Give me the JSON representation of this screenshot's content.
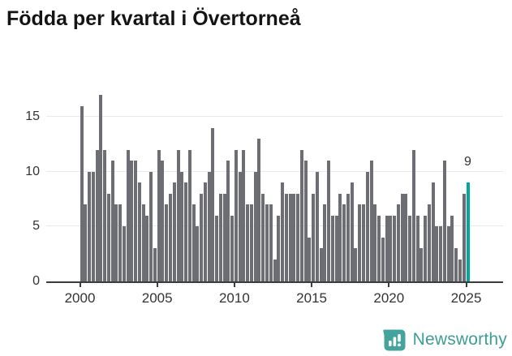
{
  "title": "Födda per kvartal i Övertorneå",
  "chart_data": {
    "type": "bar",
    "title": "Födda per kvartal i Övertorneå",
    "x_unit": "quarter",
    "start_period": "2000-Q1",
    "end_period": "2025-Q1",
    "values": [
      16,
      7,
      10,
      10,
      12,
      17,
      12,
      8,
      11,
      7,
      7,
      5,
      12,
      11,
      11,
      9,
      7,
      6,
      10,
      3,
      12,
      11,
      7,
      8,
      9,
      12,
      10,
      9,
      12,
      7,
      5,
      8,
      9,
      10,
      14,
      6,
      8,
      8,
      11,
      6,
      12,
      10,
      12,
      7,
      7,
      10,
      13,
      8,
      7,
      7,
      2,
      6,
      9,
      8,
      8,
      8,
      8,
      12,
      11,
      4,
      8,
      10,
      3,
      7,
      11,
      6,
      6,
      8,
      7,
      8,
      9,
      3,
      7,
      7,
      10,
      11,
      7,
      6,
      4,
      6,
      6,
      6,
      7,
      8,
      8,
      6,
      12,
      6,
      3,
      6,
      7,
      9,
      5,
      5,
      11,
      5,
      6,
      3,
      2,
      8,
      9
    ],
    "highlight_index": 100,
    "highlight_label": "9",
    "xticks": [
      "2000",
      "2005",
      "2010",
      "2015",
      "2020",
      "2025"
    ],
    "yticks": [
      0,
      5,
      10,
      15
    ],
    "ylim": [
      0,
      17.5
    ],
    "grid": true,
    "legend_position": "none",
    "bar_color": "#6d6d74",
    "highlight_color": "#00a79e"
  },
  "annotation": {
    "label": "9"
  },
  "footer": {
    "brand": "Newsworthy",
    "logo_icon": "bar-chart-pin-icon",
    "brand_color": "#3d9e96"
  }
}
